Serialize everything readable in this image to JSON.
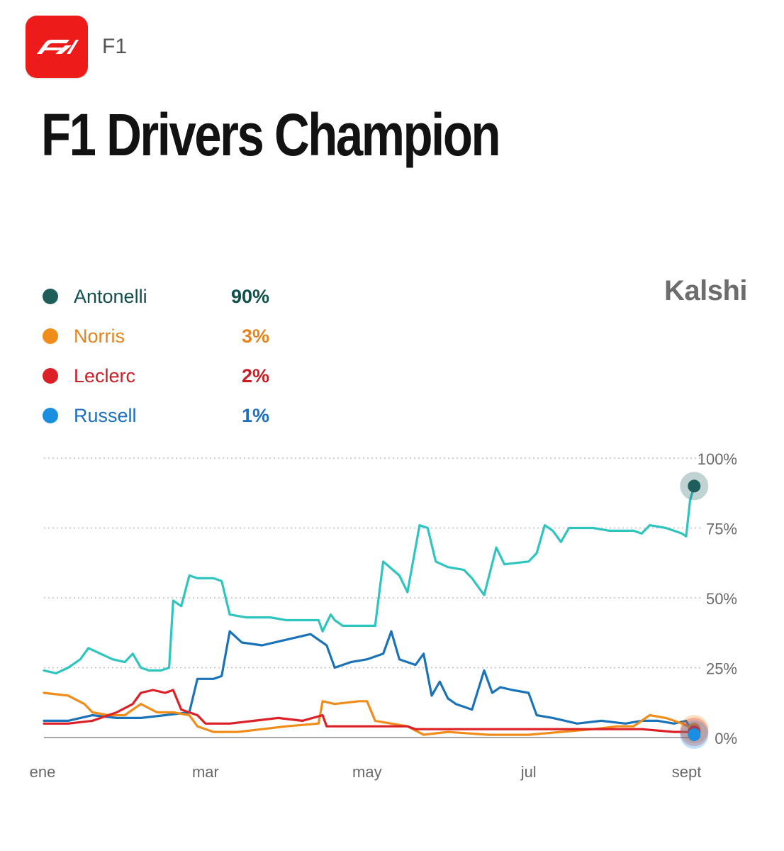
{
  "app": {
    "name": "F1",
    "logo_icon": "f1-logo-icon",
    "logo_color": "#ee1b1b"
  },
  "header": {
    "title": "F1 Drivers Champion"
  },
  "brand": "Kalshi",
  "legend": [
    {
      "name": "Antonelli",
      "value": "90%",
      "color": "#1e5e5a",
      "text_color": "#0f4f4c"
    },
    {
      "name": "Norris",
      "value": "3%",
      "color": "#f08c1a",
      "text_color": "#e5841c"
    },
    {
      "name": "Leclerc",
      "value": "2%",
      "color": "#dd1f26",
      "text_color": "#c81e26"
    },
    {
      "name": "Russell",
      "value": "1%",
      "color": "#1a8ee0",
      "text_color": "#1a6fc0"
    }
  ],
  "chart_data": {
    "type": "line",
    "x_labels": [
      "ene",
      "mar",
      "may",
      "jul",
      "sept"
    ],
    "xlim": [
      0,
      8.1
    ],
    "y_ticks": [
      "100%",
      "75%",
      "50%",
      "25%",
      "0%"
    ],
    "y_tick_values": [
      100,
      75,
      50,
      25,
      0
    ],
    "ylim": [
      0,
      100
    ],
    "grid": true,
    "series": [
      {
        "name": "Antonelli",
        "color": "#2ec4bf",
        "marker_color": "#1e5e5a",
        "end_value": 90,
        "points": [
          [
            0,
            24
          ],
          [
            0.15,
            23
          ],
          [
            0.3,
            25
          ],
          [
            0.45,
            28
          ],
          [
            0.55,
            32
          ],
          [
            0.7,
            30
          ],
          [
            0.85,
            28
          ],
          [
            1.0,
            27
          ],
          [
            1.1,
            30
          ],
          [
            1.2,
            25
          ],
          [
            1.3,
            24
          ],
          [
            1.45,
            24
          ],
          [
            1.55,
            25
          ],
          [
            1.6,
            49
          ],
          [
            1.7,
            47
          ],
          [
            1.8,
            58
          ],
          [
            1.9,
            57
          ],
          [
            2.1,
            57
          ],
          [
            2.2,
            56
          ],
          [
            2.3,
            44
          ],
          [
            2.5,
            43
          ],
          [
            2.8,
            43
          ],
          [
            3.0,
            42
          ],
          [
            3.4,
            42
          ],
          [
            3.45,
            38
          ],
          [
            3.55,
            44
          ],
          [
            3.6,
            42
          ],
          [
            3.7,
            40
          ],
          [
            4.1,
            40
          ],
          [
            4.2,
            63
          ],
          [
            4.4,
            58
          ],
          [
            4.5,
            52
          ],
          [
            4.65,
            76
          ],
          [
            4.75,
            75
          ],
          [
            4.85,
            63
          ],
          [
            5.0,
            61
          ],
          [
            5.2,
            60
          ],
          [
            5.3,
            57
          ],
          [
            5.45,
            51
          ],
          [
            5.6,
            68
          ],
          [
            5.7,
            62
          ],
          [
            6.0,
            63
          ],
          [
            6.1,
            66
          ],
          [
            6.2,
            76
          ],
          [
            6.3,
            74
          ],
          [
            6.4,
            70
          ],
          [
            6.5,
            75
          ],
          [
            6.8,
            75
          ],
          [
            7.0,
            74
          ],
          [
            7.3,
            74
          ],
          [
            7.4,
            73
          ],
          [
            7.5,
            76
          ],
          [
            7.7,
            75
          ],
          [
            7.9,
            73
          ],
          [
            7.95,
            72
          ],
          [
            8.0,
            85
          ],
          [
            8.05,
            90
          ]
        ]
      },
      {
        "name": "Russell",
        "color": "#1a73b8",
        "marker_color": "#1a8ee0",
        "end_value": 1,
        "points": [
          [
            0,
            6
          ],
          [
            0.3,
            6
          ],
          [
            0.6,
            8
          ],
          [
            0.9,
            7
          ],
          [
            1.2,
            7
          ],
          [
            1.5,
            8
          ],
          [
            1.8,
            9
          ],
          [
            1.9,
            21
          ],
          [
            2.1,
            21
          ],
          [
            2.2,
            22
          ],
          [
            2.3,
            38
          ],
          [
            2.45,
            34
          ],
          [
            2.7,
            33
          ],
          [
            3.0,
            35
          ],
          [
            3.3,
            37
          ],
          [
            3.5,
            33
          ],
          [
            3.6,
            25
          ],
          [
            3.8,
            27
          ],
          [
            4.0,
            28
          ],
          [
            4.2,
            30
          ],
          [
            4.3,
            38
          ],
          [
            4.4,
            28
          ],
          [
            4.6,
            26
          ],
          [
            4.7,
            30
          ],
          [
            4.8,
            15
          ],
          [
            4.9,
            20
          ],
          [
            5.0,
            14
          ],
          [
            5.1,
            12
          ],
          [
            5.3,
            10
          ],
          [
            5.45,
            24
          ],
          [
            5.55,
            16
          ],
          [
            5.65,
            18
          ],
          [
            5.8,
            17
          ],
          [
            6.0,
            16
          ],
          [
            6.1,
            8
          ],
          [
            6.3,
            7
          ],
          [
            6.6,
            5
          ],
          [
            6.9,
            6
          ],
          [
            7.2,
            5
          ],
          [
            7.4,
            6
          ],
          [
            7.6,
            6
          ],
          [
            7.8,
            5
          ],
          [
            7.95,
            6
          ],
          [
            8.05,
            1
          ]
        ]
      },
      {
        "name": "Norris",
        "color": "#f08c1a",
        "marker_color": "#f08c1a",
        "end_value": 3,
        "points": [
          [
            0,
            16
          ],
          [
            0.3,
            15
          ],
          [
            0.5,
            12
          ],
          [
            0.6,
            9
          ],
          [
            0.8,
            8
          ],
          [
            1.0,
            8
          ],
          [
            1.2,
            12
          ],
          [
            1.4,
            9
          ],
          [
            1.6,
            9
          ],
          [
            1.8,
            8
          ],
          [
            1.9,
            4
          ],
          [
            2.1,
            2
          ],
          [
            2.4,
            2
          ],
          [
            2.7,
            3
          ],
          [
            3.0,
            4
          ],
          [
            3.4,
            5
          ],
          [
            3.45,
            13
          ],
          [
            3.6,
            12
          ],
          [
            3.9,
            13
          ],
          [
            4.0,
            13
          ],
          [
            4.1,
            6
          ],
          [
            4.3,
            5
          ],
          [
            4.5,
            4
          ],
          [
            4.7,
            1
          ],
          [
            5.0,
            2
          ],
          [
            5.5,
            1
          ],
          [
            6.0,
            1
          ],
          [
            6.4,
            2
          ],
          [
            6.8,
            3
          ],
          [
            7.1,
            4
          ],
          [
            7.3,
            4
          ],
          [
            7.5,
            8
          ],
          [
            7.7,
            7
          ],
          [
            7.9,
            5
          ],
          [
            8.05,
            3
          ]
        ]
      },
      {
        "name": "Leclerc",
        "color": "#dd1f26",
        "marker_color": "#dd1f26",
        "end_value": 2,
        "points": [
          [
            0,
            5
          ],
          [
            0.3,
            5
          ],
          [
            0.6,
            6
          ],
          [
            0.9,
            9
          ],
          [
            1.1,
            12
          ],
          [
            1.2,
            16
          ],
          [
            1.35,
            17
          ],
          [
            1.5,
            16
          ],
          [
            1.6,
            17
          ],
          [
            1.7,
            10
          ],
          [
            1.9,
            8
          ],
          [
            2.0,
            5
          ],
          [
            2.3,
            5
          ],
          [
            2.6,
            6
          ],
          [
            2.9,
            7
          ],
          [
            3.2,
            6
          ],
          [
            3.45,
            8
          ],
          [
            3.5,
            4
          ],
          [
            3.8,
            4
          ],
          [
            4.1,
            4
          ],
          [
            4.3,
            4
          ],
          [
            4.5,
            4
          ],
          [
            4.6,
            3
          ],
          [
            5.0,
            3
          ],
          [
            5.4,
            3
          ],
          [
            5.8,
            3
          ],
          [
            6.2,
            3
          ],
          [
            6.6,
            3
          ],
          [
            7.0,
            3
          ],
          [
            7.4,
            3
          ],
          [
            7.8,
            2
          ],
          [
            8.05,
            2
          ]
        ]
      }
    ]
  }
}
